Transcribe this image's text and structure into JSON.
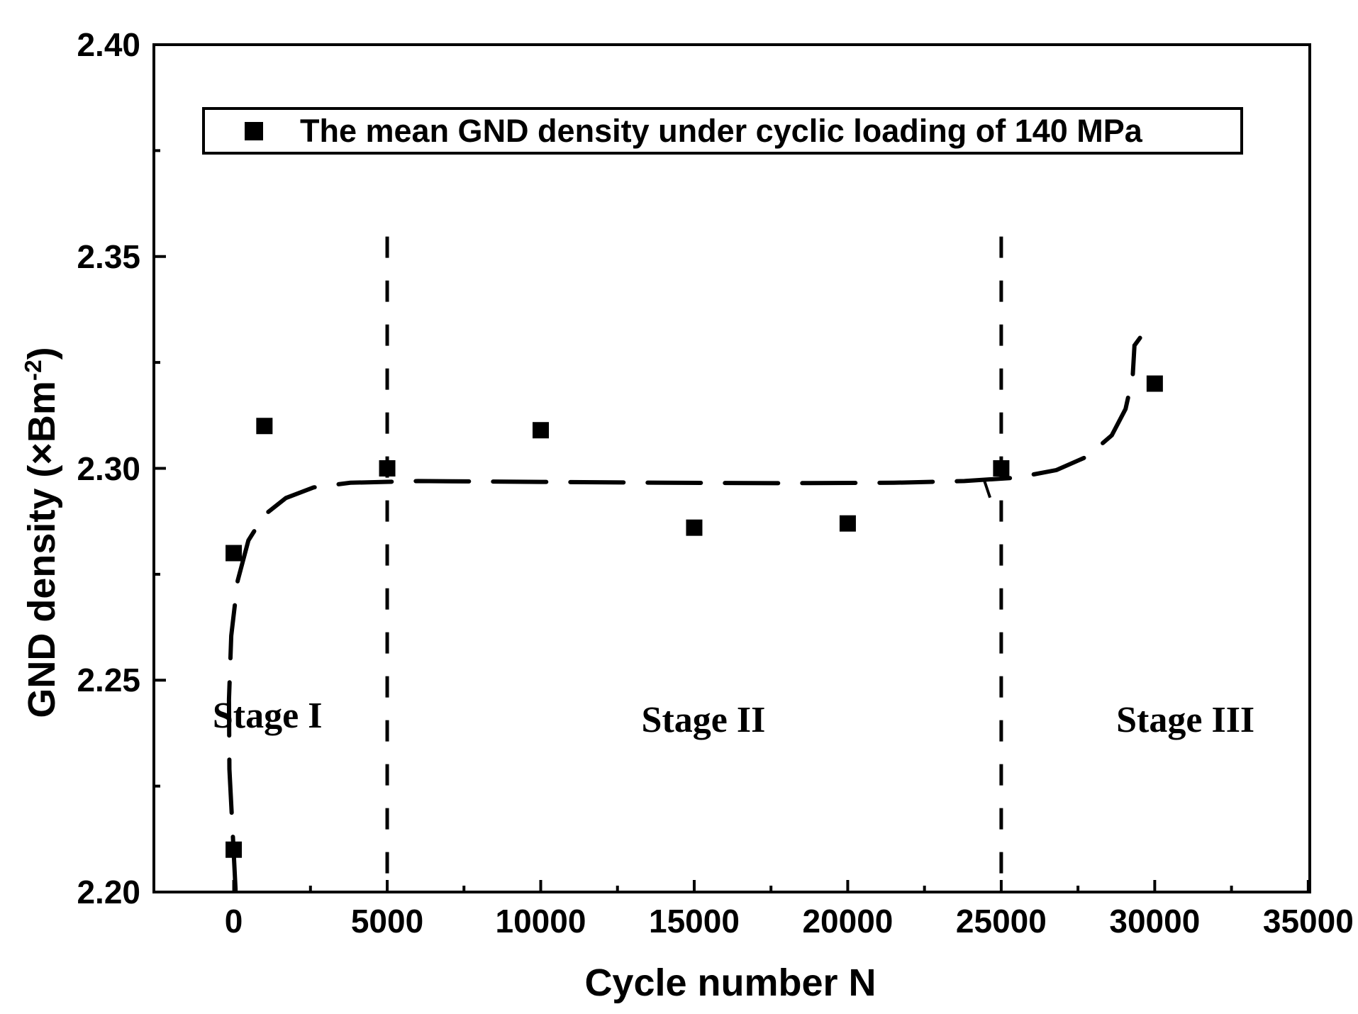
{
  "figure": {
    "background_color": "#ffffff",
    "ink_color": "#000000"
  },
  "chart_data": {
    "type": "scatter",
    "title": "",
    "xlabel": "Cycle number N",
    "ylabel": {
      "prefix": "GND density (×Bm",
      "sup": "-2",
      "suffix": ")"
    },
    "legend": {
      "label": "The mean GND density under cyclic loading of 140 MPa",
      "marker": "black-filled-square",
      "position": "upper-left-inside-box"
    },
    "grid": false,
    "xlim": [
      -2600,
      35050
    ],
    "ylim": [
      2.2,
      2.4
    ],
    "x_ticks": {
      "values": [
        0,
        5000,
        10000,
        15000,
        20000,
        25000,
        30000,
        35000
      ],
      "labels": [
        "0",
        "5000",
        "10000",
        "15000",
        "20000",
        "25000",
        "30000",
        "35000"
      ]
    },
    "x_minor_ticks": [
      2500,
      7500,
      12500,
      17500,
      22500,
      27500,
      32500
    ],
    "y_ticks": {
      "values": [
        2.2,
        2.25,
        2.3,
        2.35,
        2.4
      ],
      "labels": [
        "2.20",
        "2.25",
        "2.30",
        "2.35",
        "2.40"
      ]
    },
    "y_minor_ticks": [
      2.225,
      2.275,
      2.325,
      2.375
    ],
    "series": [
      {
        "name": "The mean GND density under cyclic loading of 140 MPa",
        "marker": "filled-square",
        "color": "#000000",
        "points": [
          [
            0,
            2.21
          ],
          [
            0,
            2.28
          ],
          [
            1000,
            2.31
          ],
          [
            5000,
            2.3
          ],
          [
            10000,
            2.309
          ],
          [
            15000,
            2.286
          ],
          [
            20000,
            2.287
          ],
          [
            25000,
            2.3
          ],
          [
            30000,
            2.32
          ]
        ]
      }
    ],
    "trend_curve": {
      "style": "long-dashed-black",
      "points": [
        [
          60,
          2.2005
        ],
        [
          -30,
          2.2135
        ],
        [
          -140,
          2.229
        ],
        [
          -155,
          2.2455
        ],
        [
          -80,
          2.2605
        ],
        [
          130,
          2.2735
        ],
        [
          480,
          2.283
        ],
        [
          1000,
          2.289
        ],
        [
          1700,
          2.293
        ],
        [
          2600,
          2.2955
        ],
        [
          3800,
          2.2966
        ],
        [
          6000,
          2.297
        ],
        [
          10000,
          2.2968
        ],
        [
          14000,
          2.2966
        ],
        [
          18000,
          2.2965
        ],
        [
          21500,
          2.2966
        ],
        [
          23800,
          2.297
        ],
        [
          25500,
          2.2978
        ],
        [
          26800,
          2.2996
        ],
        [
          27800,
          2.3028
        ],
        [
          28600,
          2.3078
        ],
        [
          29050,
          2.314
        ],
        [
          29280,
          2.3215
        ],
        [
          29340,
          2.329
        ],
        [
          29520,
          2.3308
        ]
      ]
    },
    "curve_break_mark": {
      "x1": 24450,
      "y1": 2.2971,
      "x2": 24635,
      "y2": 2.2931
    },
    "stage_boundaries": {
      "style": "dashed-vertical-black",
      "x_values": [
        5000,
        25000
      ],
      "y_top": 2.3547,
      "y_bottom": 2.2
    },
    "stage_labels": [
      {
        "label": "Stage I",
        "x": 1100,
        "y": 2.2415
      },
      {
        "label": "Stage II",
        "x": 15300,
        "y": 2.2405
      },
      {
        "label": "Stage III",
        "x": 31000,
        "y": 2.2405
      }
    ]
  }
}
